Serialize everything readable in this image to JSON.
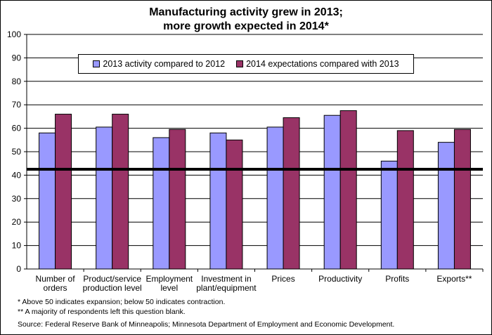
{
  "chart_data": {
    "type": "bar",
    "title_lines": [
      "Manufacturing activity grew in 2013;",
      "more growth expected in 2014*"
    ],
    "categories": [
      [
        "Number of",
        "orders"
      ],
      [
        "Product/service",
        "production level"
      ],
      [
        "Employment",
        "level"
      ],
      [
        "Investment in",
        "plant/equipment"
      ],
      [
        "Prices"
      ],
      [
        "Productivity"
      ],
      [
        "Profits"
      ],
      [
        "Exports**"
      ]
    ],
    "series": [
      {
        "name": "2013 activity compared to 2012",
        "color": "#9999ff",
        "values": [
          58,
          60.5,
          56,
          58,
          60.5,
          65.5,
          46,
          54
        ]
      },
      {
        "name": "2014 expectations compared with 2013",
        "color": "#993366",
        "values": [
          66,
          66,
          59.5,
          55,
          64.5,
          67.5,
          59,
          59.5
        ]
      }
    ],
    "ylim": [
      0,
      100
    ],
    "yticks": [
      0,
      10,
      20,
      30,
      40,
      50,
      60,
      70,
      80,
      90,
      100
    ],
    "reference_line": 42.5,
    "grid": true,
    "legend": "top-center",
    "footnotes": [
      "* Above 50 indicates expansion; below 50 indicates contraction.",
      "** A majority of respondents left this question blank."
    ],
    "source": "Source: Federal Reserve Bank of Minneapolis; Minnesota Department of Employment and Economic Development."
  }
}
